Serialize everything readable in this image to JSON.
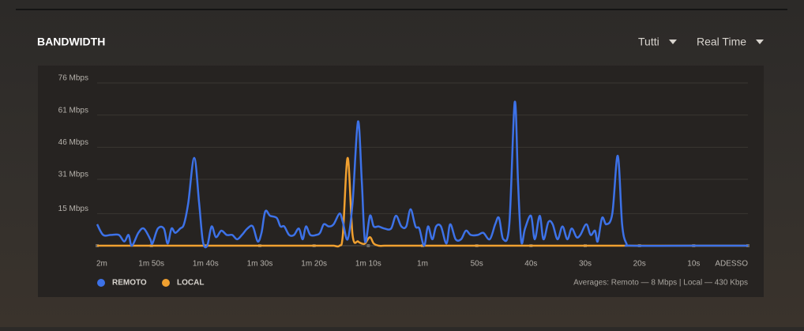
{
  "header": {
    "title": "BANDWIDTH",
    "filters": [
      "Tutti",
      "Real Time"
    ]
  },
  "chart_data": {
    "type": "line",
    "x": [
      120.0,
      118.9,
      117.5,
      116.0,
      115.0,
      114.2,
      113.6,
      112.4,
      111.4,
      110.2,
      109.8,
      108.8,
      107.7,
      107.0,
      106.3,
      105.6,
      104.7,
      104.0,
      103.2,
      102.1,
      101.2,
      100.5,
      99.7,
      98.9,
      98.1,
      97.1,
      96.1,
      95.1,
      94.2,
      93.3,
      92.3,
      91.3,
      90.4,
      89.7,
      89.0,
      88.1,
      86.9,
      86.2,
      85.5,
      84.6,
      83.7,
      82.8,
      82.1,
      81.5,
      80.7,
      79.6,
      78.9,
      78.2,
      77.3,
      76.4,
      75.3,
      74.7,
      73.8,
      72.9,
      71.9,
      71.2,
      70.6,
      69.7,
      69.0,
      68.1,
      67.0,
      65.8,
      64.9,
      63.9,
      63.0,
      62.2,
      61.3,
      60.6,
      59.7,
      59.0,
      58.2,
      57.5,
      56.6,
      55.6,
      54.9,
      53.9,
      52.9,
      52.0,
      51.1,
      49.8,
      48.8,
      47.6,
      46.6,
      45.9,
      45.1,
      44.0,
      43.0,
      42.4,
      41.8,
      41.1,
      40.0,
      39.3,
      38.4,
      37.7,
      36.8,
      36.0,
      35.1,
      34.2,
      33.3,
      32.5,
      31.6,
      30.9,
      29.8,
      29.0,
      28.2,
      27.7,
      26.9,
      26.1,
      25.0,
      24.0,
      23.2,
      22.4,
      21.4,
      10,
      0
    ],
    "series": [
      {
        "name": "REMOTO",
        "color": "#3d72e8",
        "values": [
          10,
          5,
          5,
          5,
          2,
          5,
          0,
          6,
          8,
          3,
          1,
          8,
          8,
          1,
          8,
          6,
          8,
          10,
          20,
          41,
          20,
          2,
          0,
          9,
          4,
          7,
          5,
          5,
          3,
          5,
          8,
          9,
          2,
          6,
          16,
          14,
          13,
          9,
          9,
          5,
          5,
          8,
          3,
          9,
          5,
          5,
          6,
          10,
          9,
          10,
          15,
          11,
          3,
          20,
          58,
          30,
          2,
          14,
          9,
          9,
          8,
          8,
          14,
          9,
          9,
          17,
          9,
          8,
          0,
          9,
          3,
          9,
          9,
          1,
          10,
          3,
          3,
          7,
          5,
          5,
          6,
          3,
          10,
          13,
          3,
          10,
          67,
          30,
          2,
          8,
          14,
          3,
          14,
          3,
          11,
          10,
          3,
          9,
          3,
          8,
          4,
          5,
          10,
          5,
          7,
          2,
          13,
          10,
          15,
          42,
          10,
          1,
          0,
          0,
          0
        ]
      },
      {
        "name": "LOCAL",
        "color": "#f0a030",
        "values": [
          0,
          0,
          0,
          0,
          0,
          0,
          0,
          0,
          0,
          0,
          0,
          0,
          0,
          0,
          0,
          0,
          0,
          0,
          0,
          0,
          0,
          0,
          0,
          0,
          0,
          0,
          0,
          0,
          0,
          0,
          0,
          0,
          0,
          0,
          0,
          0,
          0,
          0,
          0,
          0,
          0,
          0,
          0,
          0,
          0,
          0,
          0,
          0,
          0,
          0,
          0,
          5,
          41,
          5,
          2,
          1,
          1,
          4,
          1,
          0,
          0,
          0,
          0,
          0,
          0,
          0,
          0,
          0,
          0,
          0,
          0,
          0,
          0,
          0,
          0,
          0,
          0,
          0,
          0,
          0,
          0,
          0,
          0,
          0,
          0,
          0,
          0,
          0,
          0,
          0,
          0,
          0,
          0,
          0,
          0,
          0,
          0,
          0,
          0,
          0,
          0,
          0,
          0,
          0,
          0,
          0,
          0,
          0,
          0,
          0,
          0,
          0,
          0,
          0,
          0
        ]
      }
    ],
    "xlim": [
      120,
      0
    ],
    "xticks": [
      {
        "value": 120,
        "label": "2m"
      },
      {
        "value": 110,
        "label": "1m 50s"
      },
      {
        "value": 100,
        "label": "1m 40s"
      },
      {
        "value": 90,
        "label": "1m 30s"
      },
      {
        "value": 80,
        "label": "1m 20s"
      },
      {
        "value": 70,
        "label": "1m 10s"
      },
      {
        "value": 60,
        "label": "1m"
      },
      {
        "value": 50,
        "label": "50s"
      },
      {
        "value": 40,
        "label": "40s"
      },
      {
        "value": 30,
        "label": "30s"
      },
      {
        "value": 20,
        "label": "20s"
      },
      {
        "value": 10,
        "label": "10s"
      },
      {
        "value": 0,
        "label": "ADESSO"
      }
    ],
    "ylim": [
      0,
      76
    ],
    "yticks": [
      {
        "value": 15,
        "label": "15 Mbps"
      },
      {
        "value": 31,
        "label": "31 Mbps"
      },
      {
        "value": 46,
        "label": "46 Mbps"
      },
      {
        "value": 61,
        "label": "61 Mbps"
      },
      {
        "value": 76,
        "label": "76 Mbps"
      }
    ],
    "grid": true,
    "annotation": "Averages: Remoto — 8 Mbps | Local — 430 Kbps"
  }
}
